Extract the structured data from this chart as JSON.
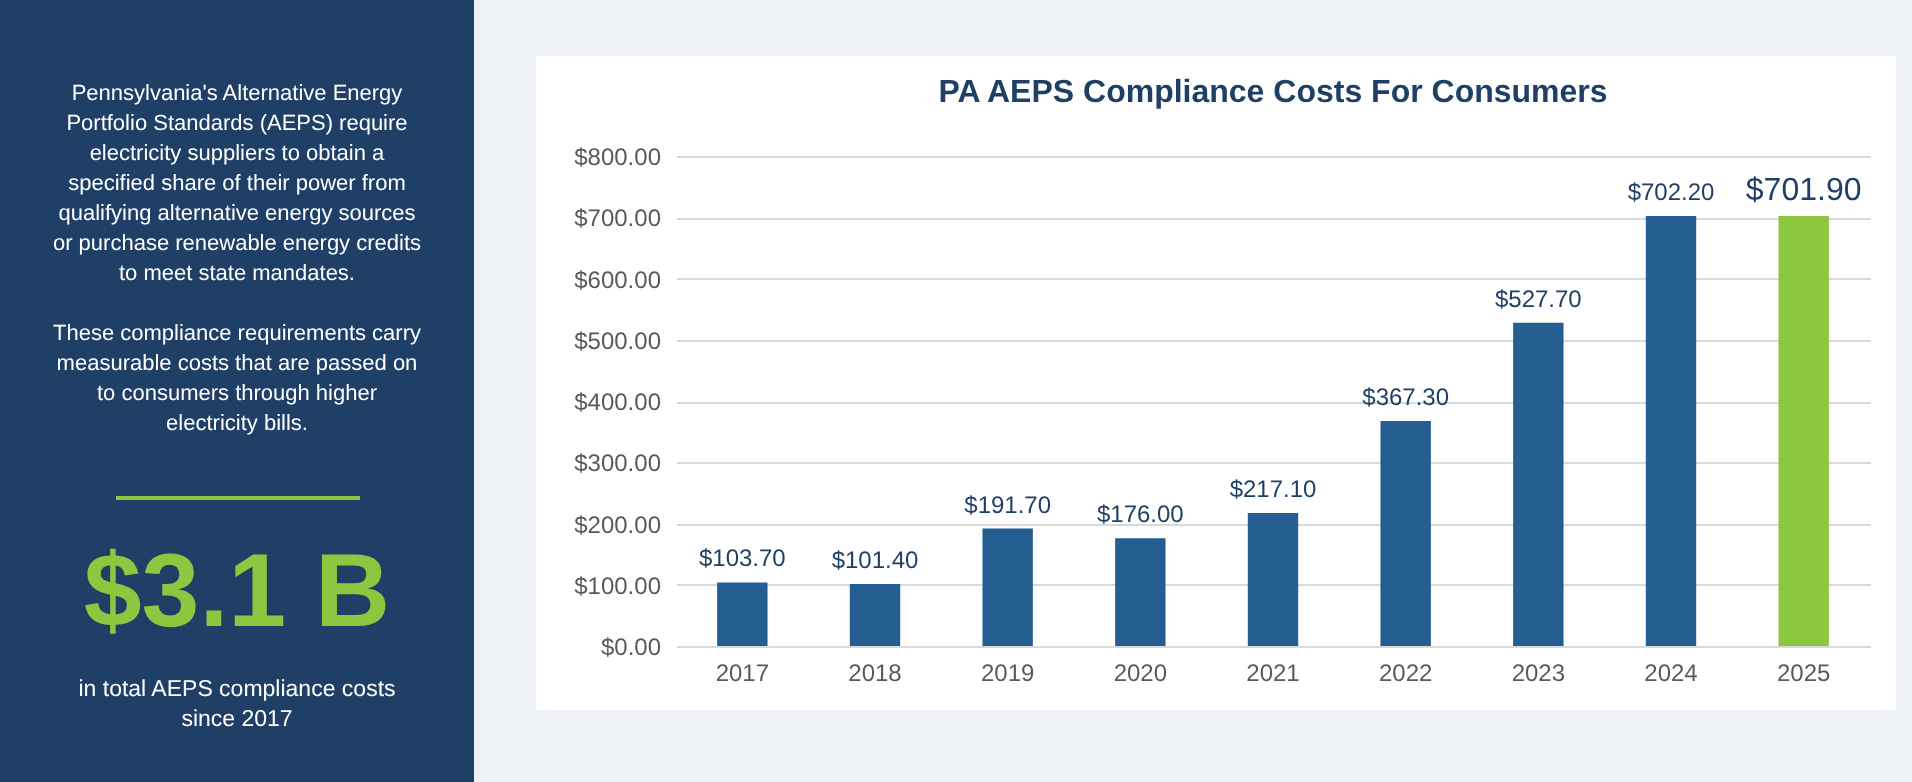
{
  "chart_data": [
    {
      "type": "other",
      "annotations": [
        "Pennsylvania's Alternative Energy Portfolio Standards (AEPS) require electricity suppliers to obtain a specified share of their power from qualifying alternative energy sources or purchase renewable energy credits to meet state mandates.",
        "These compliance requirements carry measurable costs that are passed on to consumers through higher electricity bills.",
        "$3.1 B",
        "in total AEPS compliance costs since 2017"
      ]
    },
    {
      "type": "bar",
      "title": "PA AEPS Compliance Costs For Consumers",
      "categories": [
        "2017",
        "2018",
        "2019",
        "2020",
        "2021",
        "2022",
        "2023",
        "2024",
        "2025"
      ],
      "values": [
        103.7,
        101.4,
        191.7,
        176.0,
        217.1,
        367.3,
        527.7,
        702.2,
        701.9
      ],
      "colors": [
        "#255e91",
        "#255e91",
        "#255e91",
        "#255e91",
        "#255e91",
        "#255e91",
        "#255e91",
        "#255e91",
        "#8dc63f"
      ],
      "value_labels": [
        "$103.70",
        "$101.40",
        "$191.70",
        "$176.00",
        "$217.10",
        "$367.30",
        "$527.70",
        "$702.20",
        "$701.90"
      ],
      "ylim": [
        0,
        800
      ],
      "yticks": [
        {
          "value": 0,
          "label": "$0.00"
        },
        {
          "value": 100,
          "label": "$100.00"
        },
        {
          "value": 200,
          "label": "$200.00"
        },
        {
          "value": 300,
          "label": "$300.00"
        },
        {
          "value": 400,
          "label": "$400.00"
        },
        {
          "value": 500,
          "label": "$500.00"
        },
        {
          "value": 600,
          "label": "$600.00"
        },
        {
          "value": 700,
          "label": "$700.00"
        },
        {
          "value": 800,
          "label": "$800.00"
        }
      ],
      "grid": "y"
    }
  ]
}
